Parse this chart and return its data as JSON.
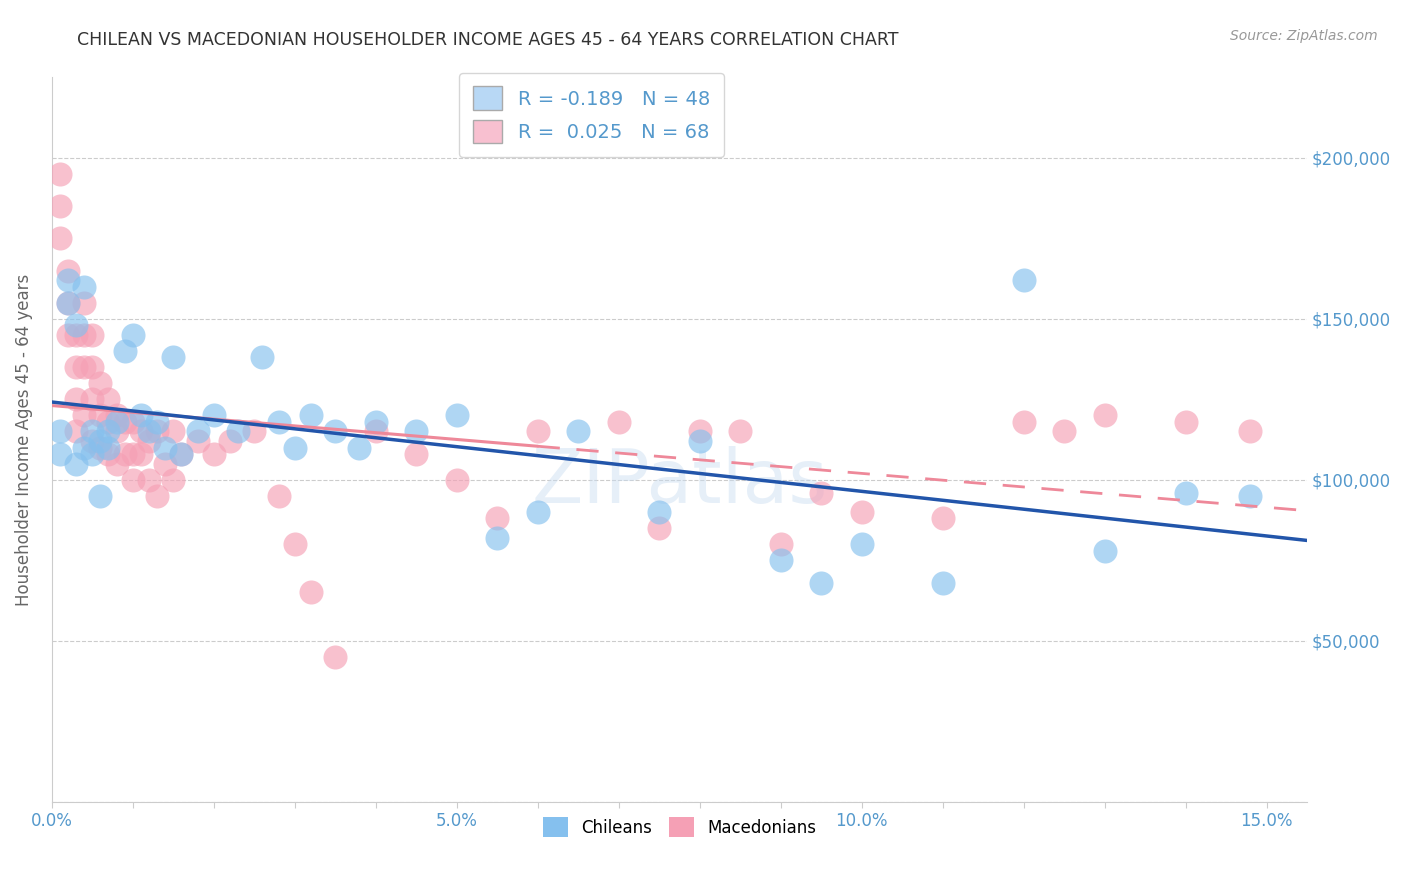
{
  "title": "CHILEAN VS MACEDONIAN HOUSEHOLDER INCOME AGES 45 - 64 YEARS CORRELATION CHART",
  "source": "Source: ZipAtlas.com",
  "ylabel": "Householder Income Ages 45 - 64 years",
  "xlim": [
    0.0,
    0.155
  ],
  "ylim": [
    0,
    225000
  ],
  "ytick_positions": [
    0,
    50000,
    100000,
    150000,
    200000
  ],
  "ytick_labels_right": [
    "",
    "$50,000",
    "$100,000",
    "$150,000",
    "$200,000"
  ],
  "background_color": "#ffffff",
  "grid_color": "#cccccc",
  "chilean_color": "#85C0EE",
  "macedonian_color": "#F5A0B5",
  "chilean_line_color": "#2255AA",
  "macedonian_line_color": "#EE8899",
  "axis_label_color": "#5599CC",
  "ylabel_color": "#666666",
  "R_chilean": -0.189,
  "N_chilean": 48,
  "R_macedonian": 0.025,
  "N_macedonian": 68,
  "chilean_x": [
    0.001,
    0.001,
    0.002,
    0.002,
    0.003,
    0.003,
    0.004,
    0.004,
    0.005,
    0.005,
    0.006,
    0.006,
    0.007,
    0.007,
    0.008,
    0.009,
    0.01,
    0.011,
    0.012,
    0.013,
    0.014,
    0.015,
    0.016,
    0.018,
    0.02,
    0.023,
    0.026,
    0.028,
    0.03,
    0.032,
    0.035,
    0.038,
    0.04,
    0.045,
    0.05,
    0.055,
    0.06,
    0.065,
    0.075,
    0.08,
    0.09,
    0.095,
    0.1,
    0.11,
    0.12,
    0.13,
    0.14,
    0.148
  ],
  "chilean_y": [
    115000,
    108000,
    155000,
    162000,
    148000,
    105000,
    160000,
    110000,
    115000,
    108000,
    112000,
    95000,
    115000,
    110000,
    118000,
    140000,
    145000,
    120000,
    115000,
    118000,
    110000,
    138000,
    108000,
    115000,
    120000,
    115000,
    138000,
    118000,
    110000,
    120000,
    115000,
    110000,
    118000,
    115000,
    120000,
    82000,
    90000,
    115000,
    90000,
    112000,
    75000,
    68000,
    80000,
    68000,
    162000,
    78000,
    96000,
    95000
  ],
  "macedonian_x": [
    0.001,
    0.001,
    0.001,
    0.002,
    0.002,
    0.002,
    0.003,
    0.003,
    0.003,
    0.003,
    0.004,
    0.004,
    0.004,
    0.004,
    0.005,
    0.005,
    0.005,
    0.005,
    0.006,
    0.006,
    0.006,
    0.007,
    0.007,
    0.007,
    0.008,
    0.008,
    0.008,
    0.009,
    0.009,
    0.01,
    0.01,
    0.01,
    0.011,
    0.011,
    0.012,
    0.012,
    0.013,
    0.013,
    0.014,
    0.015,
    0.015,
    0.016,
    0.018,
    0.02,
    0.022,
    0.025,
    0.028,
    0.03,
    0.032,
    0.035,
    0.04,
    0.045,
    0.05,
    0.055,
    0.06,
    0.07,
    0.075,
    0.08,
    0.085,
    0.09,
    0.095,
    0.1,
    0.11,
    0.12,
    0.125,
    0.13,
    0.14,
    0.148
  ],
  "macedonian_y": [
    195000,
    185000,
    175000,
    165000,
    155000,
    145000,
    145000,
    135000,
    125000,
    115000,
    155000,
    145000,
    135000,
    120000,
    145000,
    135000,
    125000,
    112000,
    130000,
    120000,
    110000,
    125000,
    118000,
    108000,
    120000,
    115000,
    105000,
    118000,
    108000,
    118000,
    108000,
    100000,
    115000,
    108000,
    112000,
    100000,
    115000,
    95000,
    105000,
    115000,
    100000,
    108000,
    112000,
    108000,
    112000,
    115000,
    95000,
    80000,
    65000,
    45000,
    115000,
    108000,
    100000,
    88000,
    115000,
    118000,
    85000,
    115000,
    115000,
    80000,
    96000,
    90000,
    88000,
    118000,
    115000,
    120000,
    118000,
    115000
  ]
}
